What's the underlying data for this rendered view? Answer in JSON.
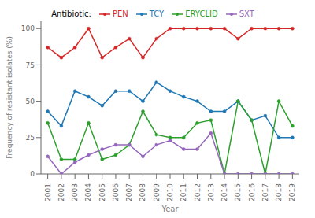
{
  "chart_data": {
    "type": "line",
    "xlabel": "Year",
    "ylabel": "Frequency of resistant isolates (%)",
    "legend_title": "Antibiotic:",
    "legend": "top",
    "grid": false,
    "marker": "circle",
    "x": [
      2001,
      2002,
      2003,
      2004,
      2005,
      2006,
      2007,
      2008,
      2009,
      2010,
      2011,
      2012,
      2013,
      2014,
      2015,
      2016,
      2017,
      2018,
      2019
    ],
    "xlim": [
      2000.5,
      2019.5
    ],
    "xticks": [
      2001,
      2002,
      2003,
      2004,
      2005,
      2006,
      2007,
      2008,
      2009,
      2010,
      2011,
      2012,
      2013,
      2014,
      2015,
      2016,
      2017,
      2018,
      2019
    ],
    "ylim": [
      0,
      105
    ],
    "yticks": [
      0,
      25,
      50,
      75,
      100
    ],
    "series": [
      {
        "name": "PEN",
        "color": "#d62728",
        "values": [
          87,
          80,
          87,
          100,
          80,
          87,
          93,
          80,
          93,
          100,
          100,
          100,
          100,
          100,
          93,
          100,
          100,
          100,
          100
        ]
      },
      {
        "name": "TCY",
        "color": "#1f77b4",
        "values": [
          43,
          33,
          57,
          53,
          47,
          57,
          57,
          50,
          63,
          57,
          53,
          50,
          43,
          43,
          50,
          37,
          40,
          25,
          25
        ]
      },
      {
        "name": "ERYCLID",
        "color": "#2ca02c",
        "values": [
          35,
          10,
          10,
          35,
          10,
          13,
          20,
          43,
          27,
          25,
          25,
          35,
          37,
          0,
          50,
          37,
          0,
          50,
          33
        ]
      },
      {
        "name": "SXT",
        "color": "#9467bd",
        "values": [
          12,
          0,
          8,
          13,
          17,
          20,
          20,
          12,
          20,
          23,
          17,
          17,
          28,
          0,
          0,
          0,
          0,
          0,
          0
        ]
      }
    ]
  }
}
